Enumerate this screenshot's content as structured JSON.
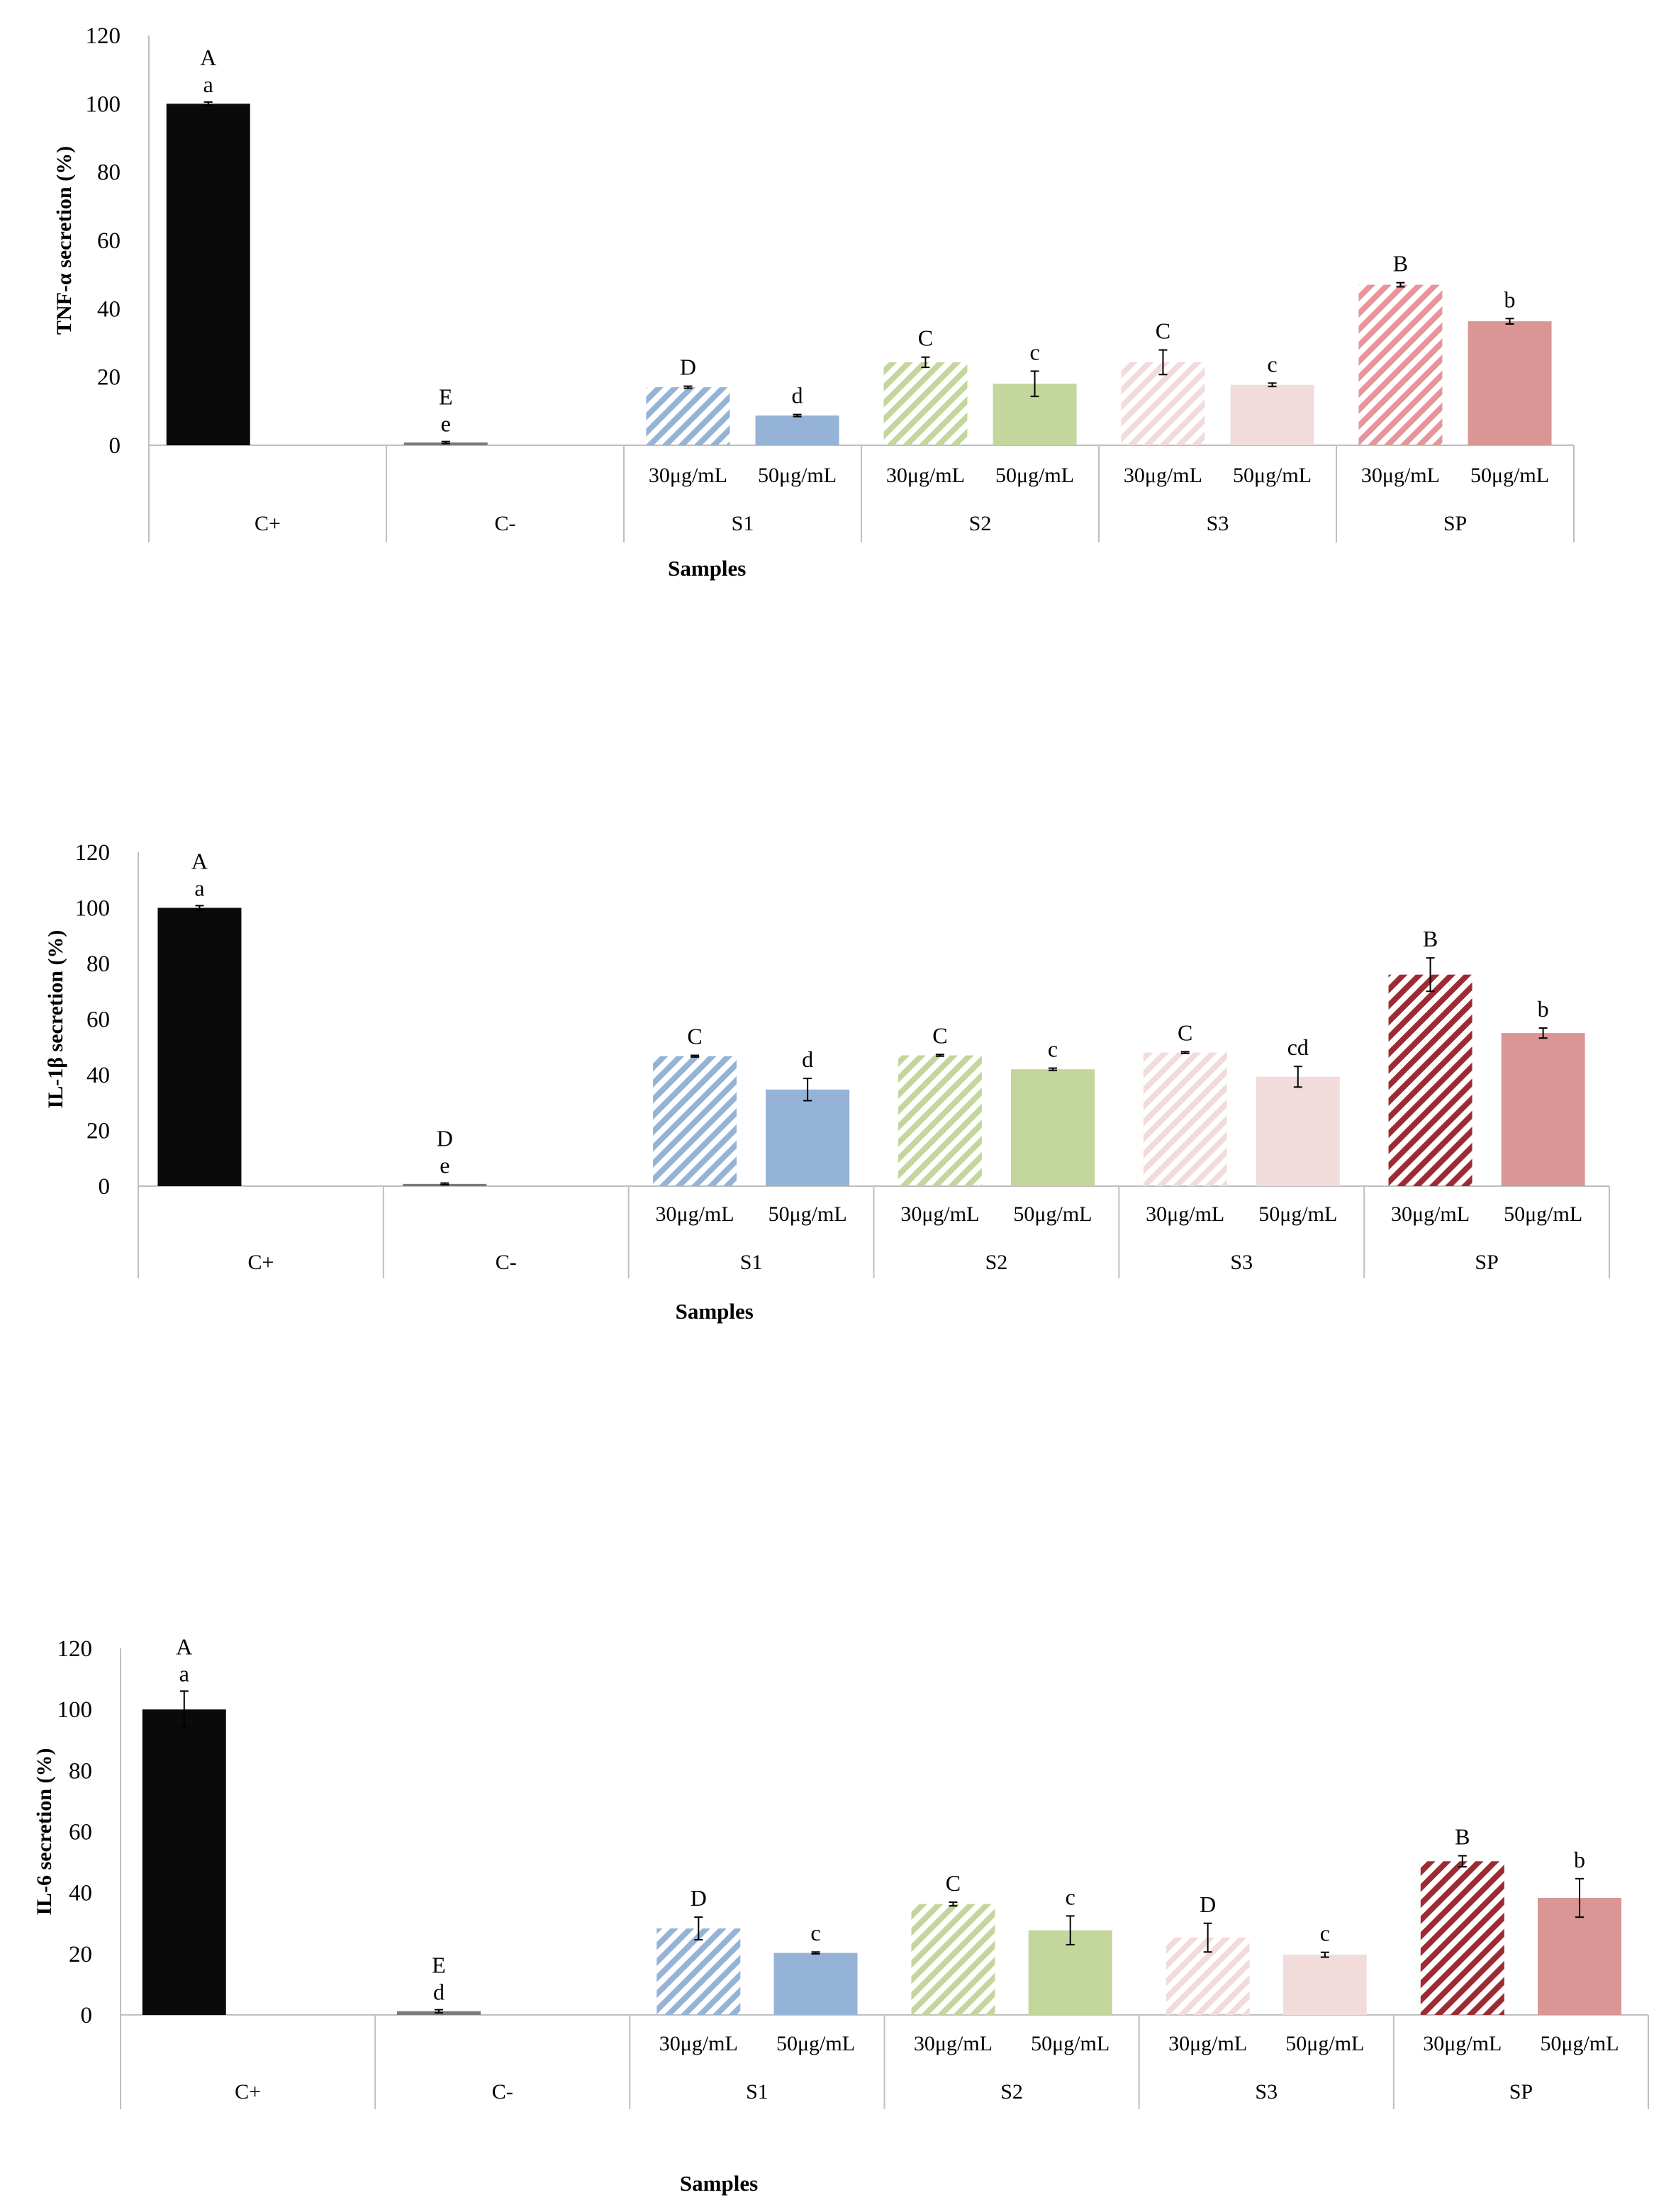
{
  "colors": {
    "black": "#0a0a0a",
    "grey": "#7a7a7a",
    "blue": "#95b3d7",
    "green": "#c3d69b",
    "pink": "#f2dcdb",
    "red_light": "#e6959b",
    "red_dark": "#9b2c33",
    "red_solid": "#d99694",
    "axis": "#bfbfbf"
  },
  "chart_data": [
    {
      "type": "bar",
      "id": "tnf",
      "title": "",
      "ylabel": "TNF-α secretion (%)",
      "xlabel": "Samples",
      "ylim": [
        0,
        120
      ],
      "yticks": [
        "0",
        "20",
        "40",
        "60",
        "80",
        "100",
        "120"
      ],
      "groups": [
        "C+",
        "C-",
        "S1",
        "S2",
        "S3",
        "SP"
      ],
      "bars": [
        {
          "group": "C+",
          "conc": "",
          "value": 100,
          "error": 0.5,
          "upper_letter": "A",
          "lower_letter": "a",
          "style": "solid",
          "color": "black"
        },
        {
          "group": "C-",
          "conc": "",
          "value": 0.8,
          "error": 0.3,
          "upper_letter": "E",
          "lower_letter": "e",
          "style": "solid",
          "color": "grey"
        },
        {
          "group": "S1",
          "conc": "30μg/mL",
          "value": 17,
          "error": 0.3,
          "upper_letter": "D",
          "lower_letter": "",
          "style": "hatch",
          "color": "blue"
        },
        {
          "group": "S1",
          "conc": "50μg/mL",
          "value": 8.7,
          "error": 0.3,
          "upper_letter": "d",
          "lower_letter": "",
          "style": "solid",
          "color": "blue"
        },
        {
          "group": "S2",
          "conc": "30μg/mL",
          "value": 24.3,
          "error": 1.5,
          "upper_letter": "C",
          "lower_letter": "",
          "style": "hatch",
          "color": "green"
        },
        {
          "group": "S2",
          "conc": "50μg/mL",
          "value": 18,
          "error": 3.7,
          "upper_letter": "c",
          "lower_letter": "",
          "style": "solid",
          "color": "green"
        },
        {
          "group": "S3",
          "conc": "30μg/mL",
          "value": 24.3,
          "error": 3.6,
          "upper_letter": "C",
          "lower_letter": "",
          "style": "hatch",
          "color": "pink"
        },
        {
          "group": "S3",
          "conc": "50μg/mL",
          "value": 17.7,
          "error": 0.5,
          "upper_letter": "c",
          "lower_letter": "",
          "style": "solid",
          "color": "pink"
        },
        {
          "group": "SP",
          "conc": "30μg/mL",
          "value": 47,
          "error": 0.6,
          "upper_letter": "B",
          "lower_letter": "",
          "style": "hatch",
          "color": "red_light"
        },
        {
          "group": "SP",
          "conc": "50μg/mL",
          "value": 36.3,
          "error": 0.8,
          "upper_letter": "b",
          "lower_letter": "",
          "style": "solid",
          "color": "red_solid"
        }
      ]
    },
    {
      "type": "bar",
      "id": "il1b",
      "title": "",
      "ylabel": "IL-1β secretion (%)",
      "xlabel": "Samples",
      "ylim": [
        0,
        120
      ],
      "yticks": [
        "0",
        "20",
        "40",
        "60",
        "80",
        "100",
        "120"
      ],
      "groups": [
        "C+",
        "C-",
        "S1",
        "S2",
        "S3",
        "SP"
      ],
      "bars": [
        {
          "group": "C+",
          "conc": "",
          "value": 100,
          "error": 0.8,
          "upper_letter": "A",
          "lower_letter": "a",
          "style": "solid",
          "color": "black"
        },
        {
          "group": "C-",
          "conc": "",
          "value": 0.8,
          "error": 0.3,
          "upper_letter": "D",
          "lower_letter": "e",
          "style": "solid",
          "color": "grey"
        },
        {
          "group": "S1",
          "conc": "30μg/mL",
          "value": 46.7,
          "error": 0.3,
          "upper_letter": "C",
          "lower_letter": "",
          "style": "hatch",
          "color": "blue"
        },
        {
          "group": "S1",
          "conc": "50μg/mL",
          "value": 34.7,
          "error": 4,
          "upper_letter": "d",
          "lower_letter": "",
          "style": "solid",
          "color": "blue"
        },
        {
          "group": "S2",
          "conc": "30μg/mL",
          "value": 47,
          "error": 0.3,
          "upper_letter": "C",
          "lower_letter": "",
          "style": "hatch",
          "color": "green"
        },
        {
          "group": "S2",
          "conc": "50μg/mL",
          "value": 42,
          "error": 0.4,
          "upper_letter": "c",
          "lower_letter": "",
          "style": "solid",
          "color": "green"
        },
        {
          "group": "S3",
          "conc": "30μg/mL",
          "value": 48,
          "error": 0.3,
          "upper_letter": "C",
          "lower_letter": "",
          "style": "hatch",
          "color": "pink"
        },
        {
          "group": "S3",
          "conc": "50μg/mL",
          "value": 39.3,
          "error": 3.7,
          "upper_letter": "cd",
          "lower_letter": "",
          "style": "solid",
          "color": "pink"
        },
        {
          "group": "SP",
          "conc": "30μg/mL",
          "value": 76,
          "error": 6,
          "upper_letter": "B",
          "lower_letter": "",
          "style": "hatch",
          "color": "red_dark"
        },
        {
          "group": "SP",
          "conc": "50μg/mL",
          "value": 55,
          "error": 1.8,
          "upper_letter": "b",
          "lower_letter": "",
          "style": "solid",
          "color": "red_solid"
        }
      ]
    },
    {
      "type": "bar",
      "id": "il6",
      "title": "",
      "ylabel": "IL-6 secretion (%)",
      "xlabel": "Samples",
      "ylim": [
        0,
        120
      ],
      "yticks": [
        "0",
        "20",
        "40",
        "60",
        "80",
        "100",
        "120"
      ],
      "groups": [
        "C+",
        "C-",
        "S1",
        "S2",
        "S3",
        "SP"
      ],
      "bars": [
        {
          "group": "C+",
          "conc": "",
          "value": 100,
          "error": 6,
          "upper_letter": "A",
          "lower_letter": "a",
          "style": "solid",
          "color": "black"
        },
        {
          "group": "C-",
          "conc": "",
          "value": 1.2,
          "error": 0.5,
          "upper_letter": "E",
          "lower_letter": "d",
          "style": "solid",
          "color": "grey"
        },
        {
          "group": "S1",
          "conc": "30μg/mL",
          "value": 28.3,
          "error": 3.7,
          "upper_letter": "D",
          "lower_letter": "",
          "style": "hatch",
          "color": "blue"
        },
        {
          "group": "S1",
          "conc": "50μg/mL",
          "value": 20.3,
          "error": 0.3,
          "upper_letter": "c",
          "lower_letter": "",
          "style": "solid",
          "color": "blue"
        },
        {
          "group": "S2",
          "conc": "30μg/mL",
          "value": 36.3,
          "error": 0.6,
          "upper_letter": "C",
          "lower_letter": "",
          "style": "hatch",
          "color": "green"
        },
        {
          "group": "S2",
          "conc": "50μg/mL",
          "value": 27.7,
          "error": 4.7,
          "upper_letter": "c",
          "lower_letter": "",
          "style": "solid",
          "color": "green"
        },
        {
          "group": "S3",
          "conc": "30μg/mL",
          "value": 25.3,
          "error": 4.7,
          "upper_letter": "D",
          "lower_letter": "",
          "style": "hatch",
          "color": "pink"
        },
        {
          "group": "S3",
          "conc": "50μg/mL",
          "value": 19.7,
          "error": 0.8,
          "upper_letter": "c",
          "lower_letter": "",
          "style": "solid",
          "color": "pink"
        },
        {
          "group": "SP",
          "conc": "30μg/mL",
          "value": 50.3,
          "error": 1.8,
          "upper_letter": "B",
          "lower_letter": "",
          "style": "hatch",
          "color": "red_dark"
        },
        {
          "group": "SP",
          "conc": "50μg/mL",
          "value": 38.3,
          "error": 6.3,
          "upper_letter": "b",
          "lower_letter": "",
          "style": "solid",
          "color": "red_solid"
        }
      ]
    }
  ]
}
